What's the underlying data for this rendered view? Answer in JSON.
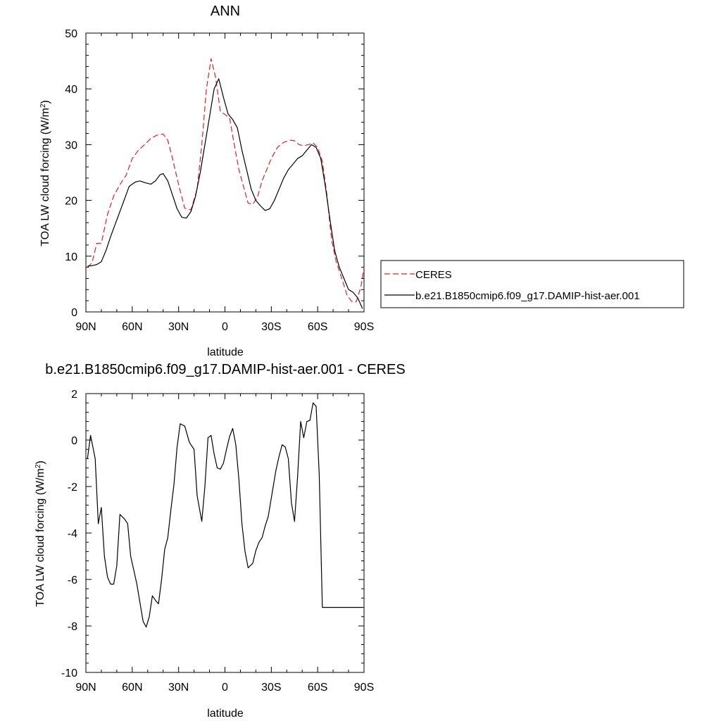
{
  "chart_data": [
    {
      "type": "line",
      "title": "ANN",
      "xlabel": "latitude",
      "ylabel": "TOA LW cloud forcing (W/m",
      "ylabel_sup": "2",
      "ylabel_close": ")",
      "xlim": [
        -90,
        90
      ],
      "ylim": [
        0,
        50
      ],
      "yticks": [
        0,
        10,
        20,
        30,
        40,
        50
      ],
      "xticks": [
        {
          "value": -90,
          "label": "90N"
        },
        {
          "value": -60,
          "label": "60N"
        },
        {
          "value": -30,
          "label": "30N"
        },
        {
          "value": 0,
          "label": "0"
        },
        {
          "value": 30,
          "label": "30S"
        },
        {
          "value": 60,
          "label": "60S"
        },
        {
          "value": 90,
          "label": "90S"
        }
      ],
      "legend": "right",
      "series": [
        {
          "name": "CERES",
          "color": "#e02020",
          "dash": "dashed",
          "x": [
            -89,
            -86,
            -83,
            -80,
            -76,
            -72,
            -68,
            -64,
            -60,
            -56,
            -52,
            -48,
            -44,
            -40,
            -37,
            -34,
            -30,
            -26,
            -22,
            -18,
            -15,
            -12,
            -9,
            -6,
            -3,
            0,
            3,
            6,
            9,
            12,
            15,
            18,
            21,
            24,
            27,
            30,
            34,
            38,
            42,
            45,
            48,
            51,
            54,
            57,
            60,
            63,
            66,
            69,
            72,
            75,
            79,
            82,
            85,
            88,
            90
          ],
          "y": [
            8.0,
            8.8,
            12.3,
            12.3,
            17.5,
            20.8,
            22.8,
            24.5,
            27.5,
            29.0,
            30.0,
            31.1,
            31.7,
            31.9,
            30.8,
            27.6,
            22.8,
            18.6,
            18.3,
            22.0,
            30.0,
            40.0,
            45.4,
            42.0,
            36.0,
            35.4,
            34.8,
            30.0,
            25.5,
            22.5,
            19.5,
            19.3,
            20.5,
            23.5,
            25.5,
            27.5,
            29.5,
            30.4,
            30.8,
            30.7,
            30.0,
            29.8,
            30.0,
            30.3,
            29.5,
            27.0,
            21.0,
            13.0,
            9.0,
            6.5,
            3.0,
            1.9,
            1.8,
            4.5,
            8.0
          ]
        },
        {
          "name": "b.e21.B1850cmip6.f09_g17.DAMIP-hist-aer.001",
          "color": "#000000",
          "dash": "solid",
          "x": [
            -89,
            -86,
            -83,
            -80,
            -77,
            -74,
            -70,
            -66,
            -62,
            -58,
            -55,
            -52,
            -48,
            -45,
            -42,
            -40,
            -37,
            -34,
            -31,
            -28,
            -25,
            -22,
            -19,
            -16,
            -13,
            -10,
            -7,
            -4,
            -1,
            2,
            5,
            8,
            11,
            14,
            17,
            20,
            23,
            26,
            29,
            32,
            35,
            38,
            41,
            44,
            47,
            50,
            53,
            56,
            59,
            62,
            65,
            68,
            71,
            74,
            77,
            80,
            83,
            86,
            89
          ],
          "y": [
            8.2,
            8.3,
            8.5,
            9.0,
            11.0,
            13.5,
            16.5,
            19.5,
            22.5,
            23.3,
            23.5,
            23.2,
            22.9,
            23.5,
            24.6,
            24.8,
            23.5,
            21.0,
            18.5,
            17.0,
            16.8,
            18.0,
            20.8,
            25.0,
            30.0,
            35.0,
            40.0,
            41.8,
            38.5,
            35.5,
            34.5,
            33.0,
            29.0,
            25.5,
            22.0,
            20.0,
            19.0,
            18.2,
            18.5,
            20.0,
            22.0,
            24.0,
            25.5,
            26.5,
            27.5,
            28.0,
            29.0,
            30.0,
            29.5,
            27.5,
            22.5,
            16.5,
            11.0,
            8.0,
            6.0,
            4.0,
            3.5,
            2.5,
            0.6
          ]
        }
      ]
    },
    {
      "type": "line",
      "title": "b.e21.B1850cmip6.f09_g17.DAMIP-hist-aer.001 - CERES",
      "xlabel": "latitude",
      "ylabel": "TOA LW cloud forcing (W/m",
      "ylabel_sup": "2",
      "ylabel_close": ")",
      "xlim": [
        -90,
        90
      ],
      "ylim": [
        -10,
        2
      ],
      "yticks": [
        -10,
        -8,
        -6,
        -4,
        -2,
        0,
        2
      ],
      "xticks": [
        {
          "value": -90,
          "label": "90N"
        },
        {
          "value": -60,
          "label": "60N"
        },
        {
          "value": -30,
          "label": "30N"
        },
        {
          "value": 0,
          "label": "0"
        },
        {
          "value": 30,
          "label": "30S"
        },
        {
          "value": 60,
          "label": "60S"
        },
        {
          "value": 90,
          "label": "90S"
        }
      ],
      "series": [
        {
          "color": "#000000",
          "dash": "solid",
          "x": [
            -89,
            -87,
            -84,
            -82,
            -80,
            -78,
            -76,
            -74,
            -72,
            -70,
            -68,
            -65,
            -63,
            -61,
            -59,
            -57,
            -55,
            -53,
            -51,
            -49,
            -47,
            -45,
            -43,
            -41,
            -39,
            -37,
            -35,
            -33,
            -31,
            -29,
            -26,
            -23,
            -20,
            -18,
            -15,
            -13,
            -11,
            -9,
            -7,
            -5,
            -3,
            -1,
            1,
            3,
            5,
            7,
            9,
            11,
            13,
            15,
            18,
            20,
            22,
            24,
            26,
            28,
            30,
            33,
            35,
            37,
            39,
            41,
            43,
            45,
            47,
            49,
            51,
            53,
            55,
            57,
            59,
            61,
            63,
            65,
            67,
            69,
            71,
            73,
            75,
            77,
            79,
            81,
            83,
            85,
            87,
            89
          ],
          "y": [
            -0.8,
            0.2,
            -0.8,
            -3.6,
            -2.9,
            -5.0,
            -5.9,
            -6.2,
            -6.2,
            -5.4,
            -3.2,
            -3.4,
            -3.6,
            -5.0,
            -5.6,
            -6.2,
            -7.0,
            -7.8,
            -8.05,
            -7.6,
            -6.7,
            -6.9,
            -7.05,
            -6.0,
            -4.7,
            -4.2,
            -3.0,
            -1.9,
            -0.3,
            0.7,
            0.6,
            -0.1,
            -0.4,
            -2.4,
            -3.5,
            -2.0,
            0.1,
            0.2,
            -0.6,
            -1.2,
            -1.25,
            -1.0,
            -0.4,
            0.15,
            0.5,
            -0.2,
            -1.7,
            -3.6,
            -4.8,
            -5.5,
            -5.3,
            -4.75,
            -4.4,
            -4.2,
            -3.7,
            -3.3,
            -2.5,
            -1.3,
            -0.7,
            -0.2,
            -0.3,
            -0.8,
            -2.7,
            -3.5,
            -1.6,
            0.8,
            0.1,
            0.8,
            0.85,
            1.6,
            1.45,
            -1.5,
            -7.2,
            -7.2,
            -7.2,
            -7.2,
            -7.2,
            -7.2,
            -7.2,
            -7.2,
            -7.2,
            -7.2,
            -7.2,
            -7.2,
            -7.2,
            -7.2
          ]
        }
      ]
    }
  ]
}
